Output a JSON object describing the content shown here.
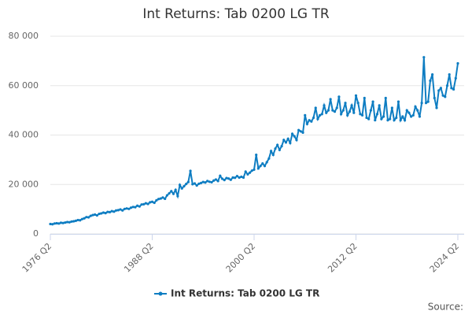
{
  "chart_data": {
    "type": "line",
    "title": "Int Returns: Tab 0200 LG TR",
    "categories": [
      "1976 Q2",
      null,
      null,
      null,
      null,
      null,
      null,
      null,
      null,
      null,
      null,
      null,
      null,
      null,
      null,
      null,
      null,
      null,
      null,
      null,
      null,
      null,
      null,
      null,
      null,
      null,
      null,
      null,
      null,
      null,
      null,
      null,
      null,
      null,
      null,
      null,
      null,
      null,
      null,
      null,
      null,
      null,
      null,
      null,
      null,
      null,
      null,
      null,
      "1988 Q2",
      null,
      null,
      null,
      null,
      null,
      null,
      null,
      null,
      null,
      null,
      null,
      null,
      null,
      null,
      null,
      null,
      null,
      null,
      null,
      null,
      null,
      null,
      null,
      null,
      null,
      null,
      null,
      null,
      null,
      null,
      null,
      null,
      null,
      null,
      null,
      null,
      null,
      null,
      null,
      null,
      null,
      null,
      null,
      null,
      null,
      null,
      null,
      "2000 Q2",
      null,
      null,
      null,
      null,
      null,
      null,
      null,
      null,
      null,
      null,
      null,
      null,
      null,
      null,
      null,
      null,
      null,
      null,
      null,
      null,
      null,
      null,
      null,
      null,
      null,
      null,
      null,
      null,
      null,
      null,
      null,
      null,
      null,
      null,
      null,
      null,
      null,
      null,
      null,
      null,
      null,
      null,
      null,
      null,
      null,
      null,
      null,
      "2012 Q2",
      null,
      null,
      null,
      null,
      null,
      null,
      null,
      null,
      null,
      null,
      null,
      null,
      null,
      null,
      null,
      null,
      null,
      null,
      null,
      null,
      null,
      null,
      null,
      null,
      null,
      null,
      null,
      null,
      null,
      null,
      null,
      null,
      null,
      null,
      null,
      null,
      null,
      null,
      null,
      null,
      null,
      null,
      null,
      null,
      null,
      null,
      null,
      "2024 Q2"
    ],
    "series": [
      {
        "name": "Int Returns: Tab 0200 LG TR",
        "color": "#0e7dc2",
        "values": [
          4000,
          3900,
          4200,
          4300,
          4200,
          4500,
          4400,
          4600,
          4800,
          4700,
          5000,
          5100,
          5300,
          5600,
          5500,
          6000,
          6300,
          6800,
          6700,
          7300,
          7600,
          7800,
          7500,
          8100,
          8300,
          8600,
          8400,
          8900,
          8800,
          9200,
          9000,
          9500,
          9600,
          9900,
          9500,
          10100,
          10300,
          10100,
          10600,
          10900,
          10800,
          11400,
          11100,
          11900,
          12000,
          12400,
          12100,
          12800,
          13000,
          12600,
          13600,
          14100,
          14300,
          14700,
          14200,
          15600,
          16400,
          17300,
          16200,
          17800,
          15300,
          19800,
          18400,
          19300,
          20200,
          21000,
          25500,
          20100,
          20400,
          19600,
          20300,
          20600,
          21000,
          20800,
          21400,
          21100,
          20900,
          21600,
          22000,
          21400,
          23500,
          22300,
          21800,
          22600,
          22400,
          21900,
          22800,
          22700,
          23400,
          22800,
          23100,
          22800,
          25200,
          24100,
          24800,
          25600,
          26000,
          32000,
          26500,
          27500,
          28500,
          27500,
          29000,
          30500,
          33500,
          32000,
          34500,
          36000,
          34000,
          35500,
          38000,
          37000,
          38500,
          36800,
          40500,
          39500,
          38000,
          42000,
          41500,
          41000,
          48000,
          44500,
          46000,
          45500,
          47000,
          51000,
          46500,
          48000,
          48500,
          52000,
          49000,
          50000,
          54500,
          50000,
          49500,
          51000,
          55500,
          48500,
          50000,
          53000,
          48000,
          49500,
          52000,
          49000,
          56000,
          53000,
          48500,
          48000,
          55000,
          47000,
          46500,
          50000,
          53500,
          46000,
          48500,
          52000,
          46500,
          47500,
          55000,
          46000,
          46500,
          51000,
          46000,
          47000,
          53500,
          46000,
          47500,
          46000,
          50000,
          49000,
          47500,
          48000,
          51500,
          50000,
          47500,
          53000,
          71500,
          53000,
          53500,
          62000,
          64500,
          55000,
          51000,
          58000,
          59000,
          56000,
          55500,
          60000,
          64500,
          59000,
          58500,
          63000,
          69000
        ]
      }
    ],
    "ylim": [
      0,
      80000
    ],
    "yticks": [
      0,
      {
        "value": 20000,
        "label": "20 000"
      },
      {
        "value": 40000,
        "label": "40 000"
      },
      {
        "value": 60000,
        "label": "60 000"
      },
      {
        "value": 80000,
        "label": "80 000"
      }
    ],
    "grid": true,
    "legend": "bottom",
    "source": "Source:"
  }
}
